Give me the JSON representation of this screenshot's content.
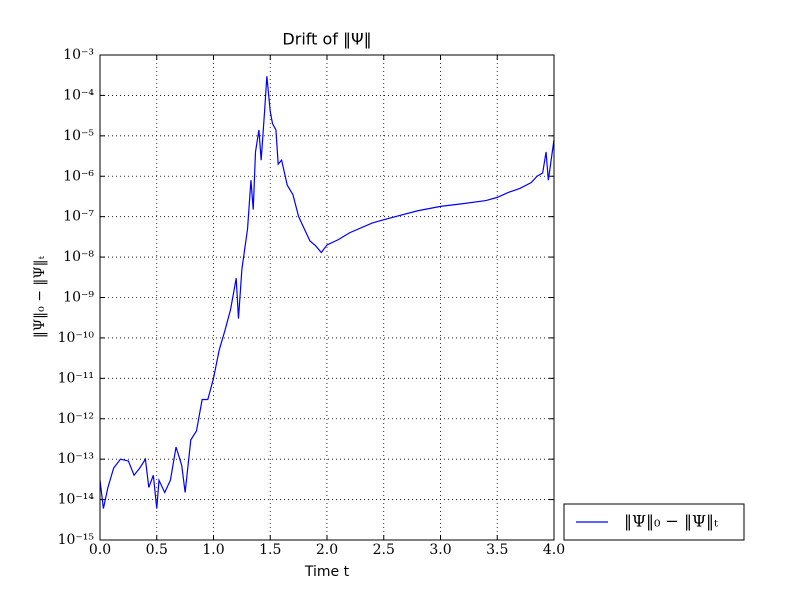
{
  "chart_data": {
    "type": "line",
    "title": "Drift of ‖Ψ‖",
    "x_label": "Time t",
    "y_label": "‖Ψ‖₀ − ‖Ψ‖ₜ",
    "yscale": "log",
    "grid": true,
    "legend": "outside-lower-right",
    "xlim": [
      0,
      4
    ],
    "ylim": [
      1e-15,
      0.001
    ],
    "xticks": [
      {
        "value": 0,
        "label": "0.0"
      },
      {
        "value": 0.5,
        "label": "0.5"
      },
      {
        "value": 1,
        "label": "1.0"
      },
      {
        "value": 1.5,
        "label": "1.5"
      },
      {
        "value": 2,
        "label": "2.0"
      },
      {
        "value": 2.5,
        "label": "2.5"
      },
      {
        "value": 3,
        "label": "3.0"
      },
      {
        "value": 3.5,
        "label": "3.5"
      },
      {
        "value": 4,
        "label": "4.0"
      }
    ],
    "yticks": [
      {
        "value": 1e-15,
        "label": "10⁻¹⁵"
      },
      {
        "value": 1e-14,
        "label": "10⁻¹⁴"
      },
      {
        "value": 1e-13,
        "label": "10⁻¹³"
      },
      {
        "value": 1e-12,
        "label": "10⁻¹²"
      },
      {
        "value": 1e-11,
        "label": "10⁻¹¹"
      },
      {
        "value": 1e-10,
        "label": "10⁻¹⁰"
      },
      {
        "value": 1e-09,
        "label": "10⁻⁹"
      },
      {
        "value": 1e-08,
        "label": "10⁻⁸"
      },
      {
        "value": 1e-07,
        "label": "10⁻⁷"
      },
      {
        "value": 1e-06,
        "label": "10⁻⁶"
      },
      {
        "value": 1e-05,
        "label": "10⁻⁵"
      },
      {
        "value": 0.0001,
        "label": "10⁻⁴"
      },
      {
        "value": 0.001,
        "label": "10⁻³"
      }
    ],
    "x": [
      0,
      0.03,
      0.07,
      0.12,
      0.18,
      0.25,
      0.3,
      0.35,
      0.4,
      0.43,
      0.47,
      0.5,
      0.52,
      0.57,
      0.62,
      0.67,
      0.72,
      0.75,
      0.8,
      0.85,
      0.9,
      0.95,
      1.0,
      1.05,
      1.1,
      1.15,
      1.2,
      1.22,
      1.25,
      1.3,
      1.33,
      1.35,
      1.37,
      1.4,
      1.42,
      1.45,
      1.47,
      1.5,
      1.52,
      1.55,
      1.57,
      1.6,
      1.65,
      1.7,
      1.75,
      1.8,
      1.85,
      1.9,
      1.95,
      2.0,
      2.1,
      2.2,
      2.4,
      2.6,
      2.8,
      3.0,
      3.2,
      3.4,
      3.5,
      3.6,
      3.7,
      3.8,
      3.85,
      3.9,
      3.93,
      3.95,
      4.0
    ],
    "series": [
      {
        "name": "‖Ψ‖₀ − ‖Ψ‖ₜ",
        "color": "#0000ff",
        "values": [
          3e-14,
          6e-15,
          2e-14,
          6e-14,
          1e-13,
          9e-14,
          4e-14,
          6e-14,
          1e-13,
          2e-14,
          4e-14,
          6e-15,
          3e-14,
          1.5e-14,
          3e-14,
          2e-13,
          7e-14,
          1.5e-14,
          3e-13,
          5e-13,
          3e-12,
          3e-12,
          1e-11,
          5e-11,
          1.5e-10,
          5e-10,
          3e-09,
          3e-10,
          5e-09,
          5e-08,
          8e-07,
          1.5e-07,
          4e-06,
          1.4e-05,
          2.5e-06,
          4e-05,
          0.0003,
          4e-05,
          2e-05,
          1.4e-05,
          2e-06,
          2.5e-06,
          6e-07,
          3.5e-07,
          1e-07,
          5e-08,
          2.5e-08,
          1.9e-08,
          1.3e-08,
          2e-08,
          2.7e-08,
          4e-08,
          7e-08,
          1e-07,
          1.4e-07,
          1.8e-07,
          2.1e-07,
          2.5e-07,
          3e-07,
          4e-07,
          5e-07,
          7e-07,
          1e-06,
          1.2e-06,
          4e-06,
          8e-07,
          8e-06
        ]
      }
    ]
  }
}
